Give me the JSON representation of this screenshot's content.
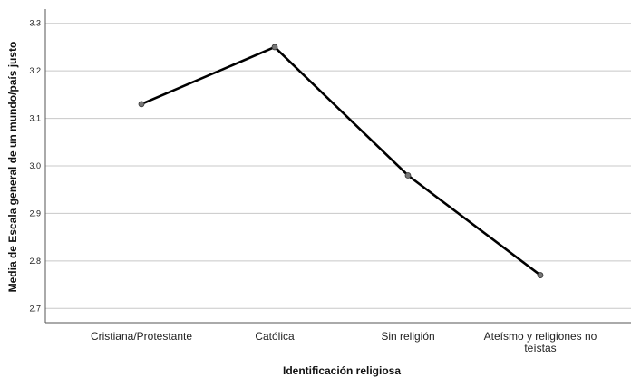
{
  "chart_data": {
    "type": "line",
    "title": "",
    "xlabel": "Identificación religiosa",
    "ylabel": "Media de Escala general de un mundo/país justo",
    "categories": [
      "Cristiana/Protestante",
      "Católica",
      "Sin religión",
      "Ateísmo y religiones no teístas"
    ],
    "category_label_lines": [
      [
        "Cristiana/Protestante"
      ],
      [
        "Católica"
      ],
      [
        "Sin religión"
      ],
      [
        "Ateísmo y religiones no",
        "teístas"
      ]
    ],
    "series": [
      {
        "values": [
          3.13,
          3.25,
          2.98,
          2.77
        ]
      }
    ],
    "ylim": [
      2.67,
      3.33
    ],
    "yticks": [
      2.7,
      2.8,
      2.9,
      3.0,
      3.1,
      3.2,
      3.3
    ],
    "ytick_labels": [
      "2.7",
      "2.8",
      "2.9",
      "3.0",
      "3.1",
      "3.2",
      "3.3"
    ],
    "grid": "horizontal",
    "line_color": "#000000",
    "marker_color": "#777777",
    "grid_color": "#c8c8c8"
  }
}
